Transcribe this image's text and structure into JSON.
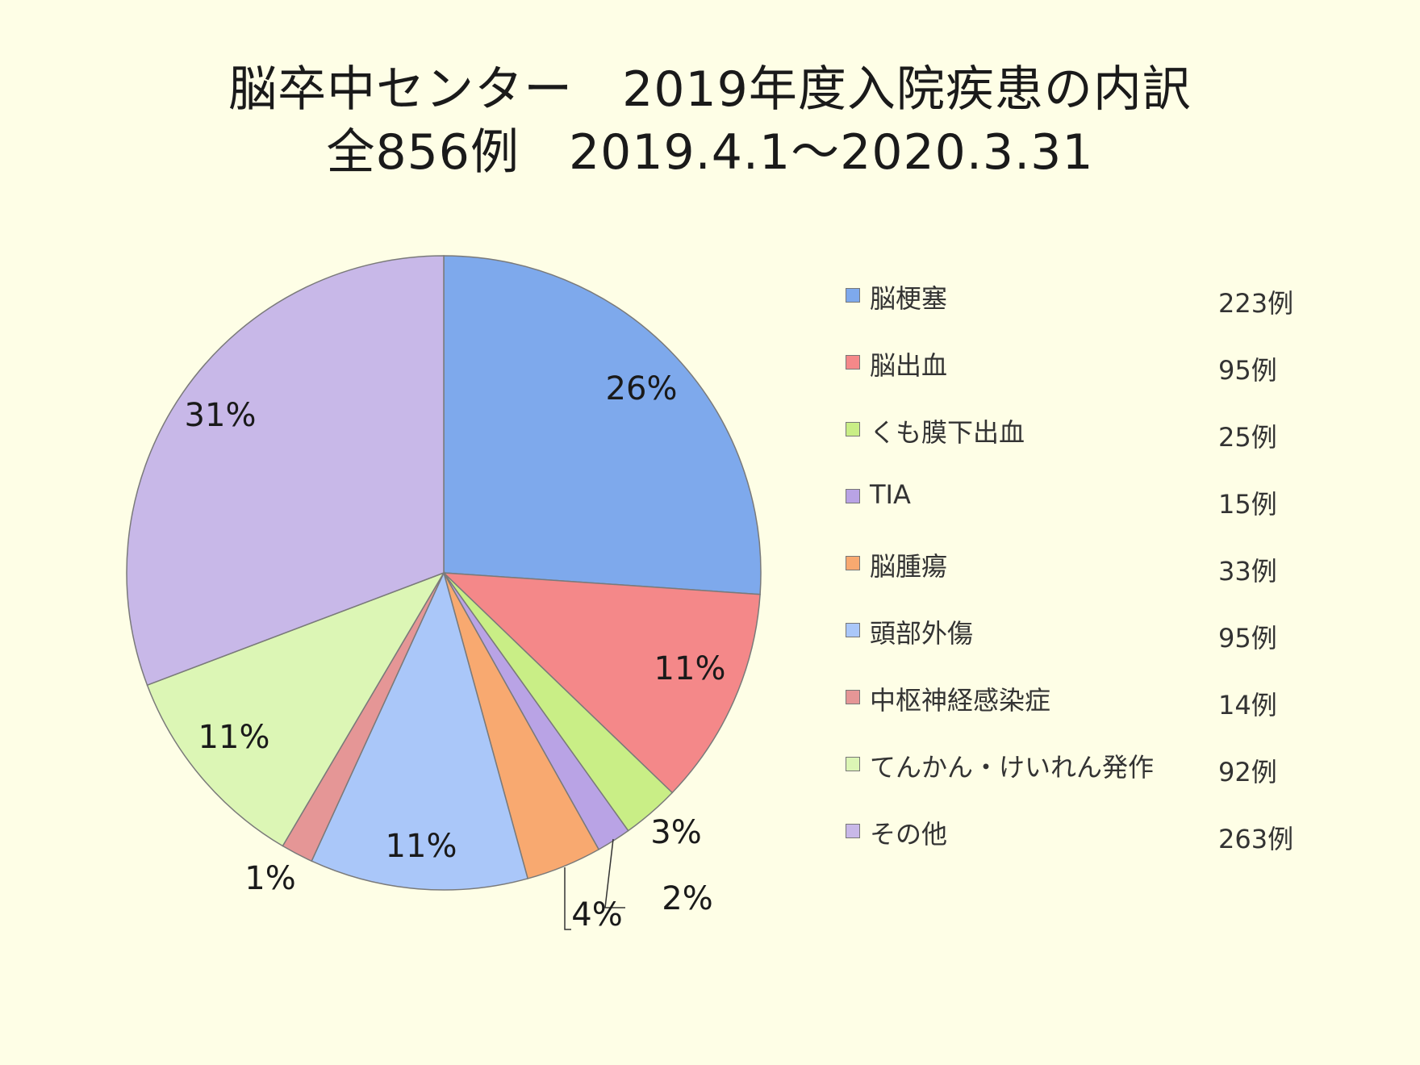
{
  "chart_data": {
    "type": "pie",
    "title": "脳卒中センター　2019年度入院疾患の内訳",
    "subtitle": "全856例　2019.4.1～2020.3.31",
    "legend_position": "right",
    "start_angle_deg": 0,
    "direction": "clockwise",
    "slices": [
      {
        "name": "脳梗塞",
        "value": 223,
        "count_label": "223例",
        "pct_label": "26%",
        "color": "#7ea9ec"
      },
      {
        "name": "脳出血",
        "value": 95,
        "count_label": "95例",
        "pct_label": "11%",
        "color": "#f48889"
      },
      {
        "name": "くも膜下出血",
        "value": 25,
        "count_label": "25例",
        "pct_label": "3%",
        "color": "#c9ee86"
      },
      {
        "name": "TIA",
        "value": 15,
        "count_label": "15例",
        "pct_label": "2%",
        "color": "#b9a3e5"
      },
      {
        "name": "脳腫瘍",
        "value": 33,
        "count_label": "33例",
        "pct_label": "4%",
        "color": "#f8a970"
      },
      {
        "name": "頭部外傷",
        "value": 95,
        "count_label": "95例",
        "pct_label": "11%",
        "color": "#aac7f9"
      },
      {
        "name": "中枢神経感染症",
        "value": 14,
        "count_label": "14例",
        "pct_label": "1%",
        "color": "#e59696"
      },
      {
        "name": "てんかん・けいれん発作",
        "value": 92,
        "count_label": "92例",
        "pct_label": "11%",
        "color": "#dcf6b5"
      },
      {
        "name": "その他",
        "value": 263,
        "count_label": "263例",
        "pct_label": "31%",
        "color": "#c8b8e8"
      }
    ]
  }
}
